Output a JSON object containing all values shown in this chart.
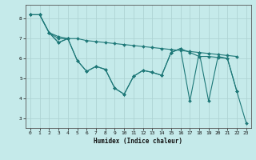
{
  "title": "",
  "xlabel": "Humidex (Indice chaleur)",
  "xlim": [
    -0.5,
    23.5
  ],
  "ylim": [
    2.5,
    8.7
  ],
  "xticks": [
    0,
    1,
    2,
    3,
    4,
    5,
    6,
    7,
    8,
    9,
    10,
    11,
    12,
    13,
    14,
    15,
    16,
    17,
    18,
    19,
    20,
    21,
    22,
    23
  ],
  "yticks": [
    3,
    4,
    5,
    6,
    7,
    8
  ],
  "background_color": "#c5eaea",
  "grid_color": "#aed4d4",
  "line_color": "#1e7878",
  "series": [
    {
      "x": [
        0,
        1,
        2,
        3,
        4,
        5,
        6,
        7,
        8,
        9,
        10,
        11,
        12,
        13,
        14,
        15,
        16,
        17,
        18,
        19,
        20,
        21,
        22
      ],
      "y": [
        8.2,
        8.2,
        7.3,
        7.1,
        7.0,
        7.0,
        6.9,
        6.85,
        6.8,
        6.75,
        6.7,
        6.65,
        6.6,
        6.55,
        6.5,
        6.45,
        6.4,
        6.35,
        6.3,
        6.25,
        6.2,
        6.15,
        6.1
      ]
    },
    {
      "x": [
        0,
        1,
        2,
        3,
        4,
        5,
        6,
        7,
        8,
        9,
        10,
        11,
        12,
        13,
        14,
        15,
        16,
        17,
        18,
        19,
        20,
        21,
        22
      ],
      "y": [
        8.2,
        8.2,
        7.3,
        6.8,
        7.0,
        5.9,
        5.35,
        5.6,
        5.45,
        4.5,
        4.2,
        5.1,
        5.4,
        5.3,
        5.15,
        6.3,
        6.5,
        6.3,
        6.1,
        6.1,
        6.05,
        6.0,
        4.35
      ]
    },
    {
      "x": [
        2,
        3,
        4,
        5,
        6,
        7,
        8,
        9,
        10,
        11,
        12,
        13,
        14,
        15,
        16,
        17,
        18,
        19,
        20,
        21,
        22,
        23
      ],
      "y": [
        7.3,
        6.8,
        7.0,
        5.9,
        5.35,
        5.6,
        5.45,
        4.5,
        4.2,
        5.1,
        5.4,
        5.3,
        5.15,
        6.3,
        6.5,
        3.85,
        6.3,
        3.85,
        6.1,
        6.0,
        4.35,
        2.75
      ]
    },
    {
      "x": [
        0,
        1,
        2,
        3,
        4
      ],
      "y": [
        8.2,
        8.2,
        7.3,
        7.0,
        7.0
      ]
    }
  ],
  "figsize": [
    3.2,
    2.0
  ],
  "dpi": 100
}
